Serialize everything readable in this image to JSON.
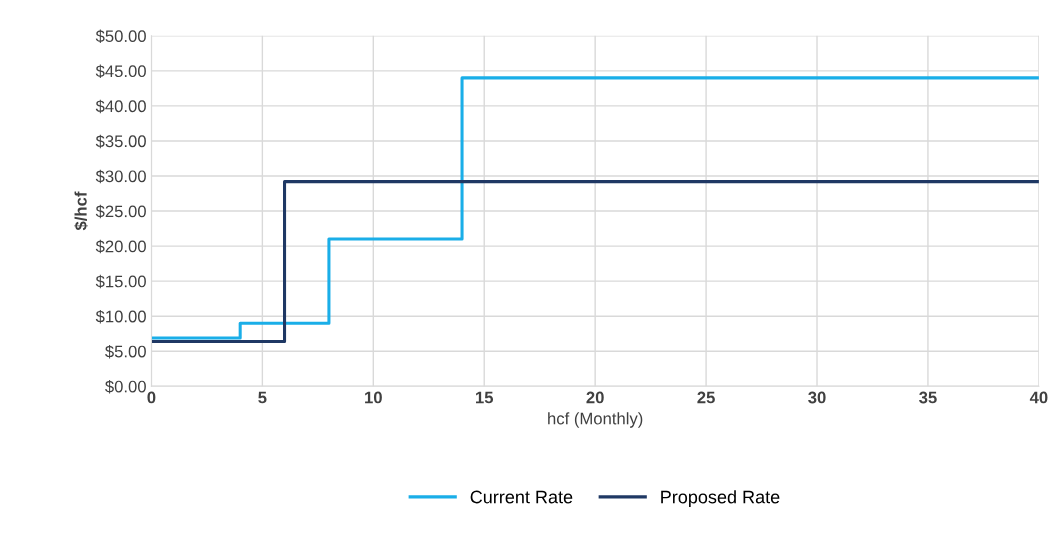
{
  "chart_data": {
    "type": "step",
    "xlabel": "hcf (Monthly)",
    "ylabel": "$/hcf",
    "series": [
      {
        "name": "Current Rate",
        "color": "#1aaee8",
        "x": [
          0,
          4,
          8,
          14,
          40
        ],
        "values": [
          6.9,
          9.0,
          21.0,
          44.0,
          44.0
        ]
      },
      {
        "name": "Proposed Rate",
        "color": "#1f3864",
        "x": [
          0,
          6,
          40
        ],
        "values": [
          6.4,
          29.2,
          29.2
        ]
      }
    ],
    "xlim": [
      0,
      40
    ],
    "xticks": [
      0,
      5,
      10,
      15,
      20,
      25,
      30,
      35,
      40
    ],
    "ylim": [
      0,
      50
    ],
    "yticks": [
      {
        "value": 0,
        "label": "$0.00"
      },
      {
        "value": 5,
        "label": "$5.00"
      },
      {
        "value": 10,
        "label": "$10.00"
      },
      {
        "value": 15,
        "label": "$15.00"
      },
      {
        "value": 20,
        "label": "$20.00"
      },
      {
        "value": 25,
        "label": "$25.00"
      },
      {
        "value": 30,
        "label": "$30.00"
      },
      {
        "value": 35,
        "label": "$35.00"
      },
      {
        "value": 40,
        "label": "$40.00"
      },
      {
        "value": 45,
        "label": "$45.00"
      },
      {
        "value": 50,
        "label": "$50.00"
      }
    ],
    "grid": true,
    "legend": "bottom",
    "marker": "none",
    "line_style": "solid"
  }
}
